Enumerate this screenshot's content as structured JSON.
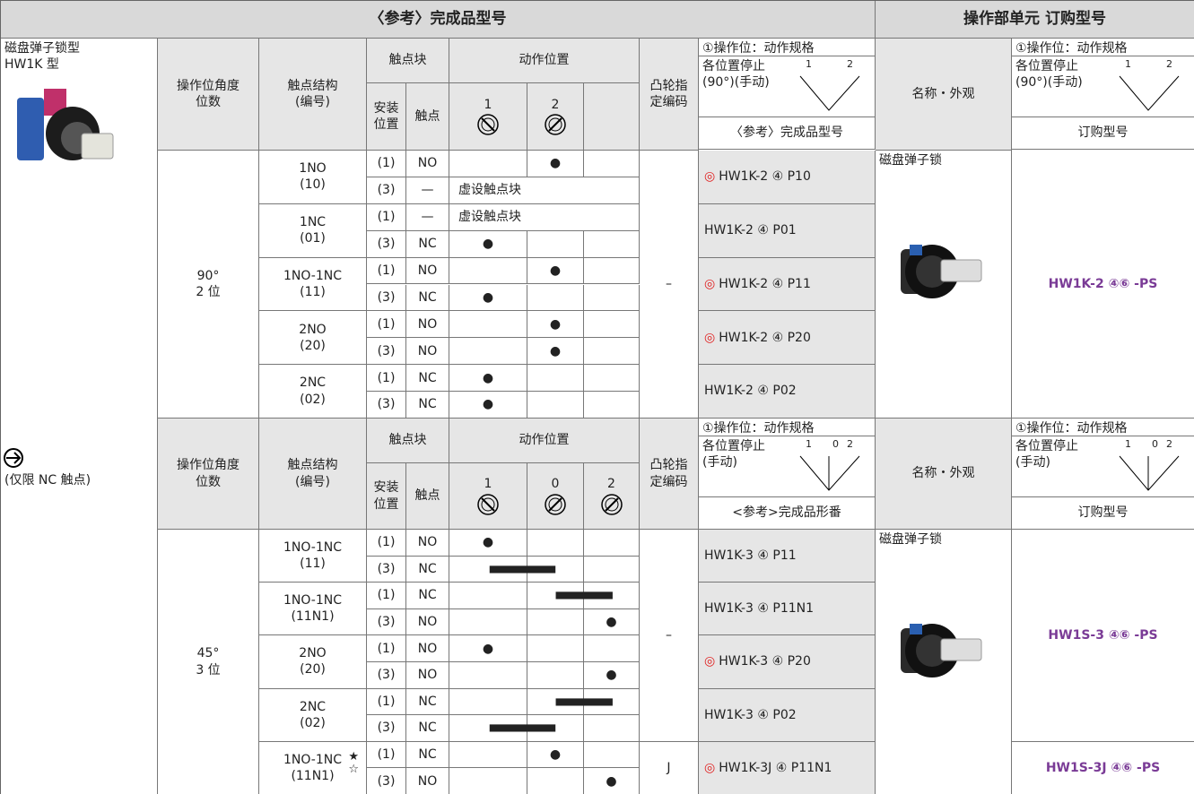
{
  "header": {
    "reference": "〈参考〉完成品型号",
    "order": "操作部单元 订购型号"
  },
  "side": {
    "title": "磁盘弹子锁型",
    "model": "HW1K 型",
    "note": "(仅限 NC 触点)"
  },
  "sections": [
    {
      "header": {
        "angle": "操作位角度\n位数",
        "structure": "触点结构\n(编号)",
        "block": "触点块",
        "action": "动作位置",
        "install": "安装\n位置",
        "contact": "触点",
        "positions": [
          "1",
          "2"
        ],
        "cam": "凸轮指\n定编码",
        "spec": "①操作位：动作规格",
        "stop": "各位置停止\n(90°)(手动)",
        "diagram": [
          "1",
          "2"
        ],
        "ref": "〈参考〉完成品型号",
        "name": "名称・外观",
        "order_spec": "①操作位：动作规格",
        "order_stop": "各位置停止\n(90°)(手动)",
        "order_diagram": [
          "1",
          "2"
        ],
        "order_label": "订购型号"
      },
      "angle": "90°\n2 位",
      "name": "磁盘弹子锁",
      "groups": [
        {
          "cam": "–",
          "order": "HW1K-2 ④⑥ -PS",
          "pairs": [
            {
              "structure": "1NO\n(10)",
              "mark": "◎",
              "model": "HW1K-2 ④ P10",
              "rows": [
                {
                  "pos": "(1)",
                  "contact": "NO",
                  "actions": [
                    null,
                    "●"
                  ]
                },
                {
                  "pos": "(3)",
                  "contact": "—",
                  "dummy": "虚设触点块"
                }
              ]
            },
            {
              "structure": "1NC\n(01)",
              "model": "HW1K-2 ④ P01",
              "rows": [
                {
                  "pos": "(1)",
                  "contact": "—",
                  "dummy": "虚设触点块"
                },
                {
                  "pos": "(3)",
                  "contact": "NC",
                  "actions": [
                    "●",
                    null
                  ]
                }
              ]
            },
            {
              "structure": "1NO-1NC\n(11)",
              "mark": "◎",
              "model": "HW1K-2 ④ P11",
              "rows": [
                {
                  "pos": "(1)",
                  "contact": "NO",
                  "actions": [
                    null,
                    "●"
                  ]
                },
                {
                  "pos": "(3)",
                  "contact": "NC",
                  "actions": [
                    "●",
                    null
                  ]
                }
              ]
            },
            {
              "structure": "2NO\n(20)",
              "mark": "◎",
              "model": "HW1K-2 ④ P20",
              "rows": [
                {
                  "pos": "(1)",
                  "contact": "NO",
                  "actions": [
                    null,
                    "●"
                  ]
                },
                {
                  "pos": "(3)",
                  "contact": "NO",
                  "actions": [
                    null,
                    "●"
                  ]
                }
              ]
            },
            {
              "structure": "2NC\n(02)",
              "model": "HW1K-2 ④ P02",
              "rows": [
                {
                  "pos": "(1)",
                  "contact": "NC",
                  "actions": [
                    "●",
                    null
                  ]
                },
                {
                  "pos": "(3)",
                  "contact": "NC",
                  "actions": [
                    "●",
                    null
                  ]
                }
              ]
            }
          ]
        }
      ]
    },
    {
      "header": {
        "angle": "操作位角度\n位数",
        "structure": "触点结构\n(编号)",
        "block": "触点块",
        "action": "动作位置",
        "install": "安装\n位置",
        "contact": "触点",
        "positions": [
          "1",
          "0",
          "2"
        ],
        "cam": "凸轮指\n定编码",
        "spec": "①操作位：动作规格",
        "stop": "各位置停止\n(手动)",
        "diagram": [
          "1",
          "0",
          "2"
        ],
        "ref": "<参考>完成品形番",
        "name": "名称・外观",
        "order_spec": "①操作位：动作规格",
        "order_stop": "各位置停止\n(手动)",
        "order_diagram": [
          "1",
          "0",
          "2"
        ],
        "order_label": "订购型号"
      },
      "angle": "45°\n3 位",
      "name": "磁盘弹子锁",
      "groups": [
        {
          "cam": "–",
          "order": "HW1S-3 ④⑥ -PS",
          "pairs": [
            {
              "structure": "1NO-1NC\n(11)",
              "model": "HW1K-3 ④ P11",
              "rows": [
                {
                  "pos": "(1)",
                  "contact": "NO",
                  "actions": [
                    "●",
                    null,
                    null
                  ]
                },
                {
                  "pos": "(3)",
                  "contact": "NC",
                  "actions": [
                    "▬",
                    null,
                    null
                  ]
                }
              ]
            },
            {
              "structure": "1NO-1NC\n(11N1)",
              "model": "HW1K-3 ④ P11N1",
              "rows": [
                {
                  "pos": "(1)",
                  "contact": "NC",
                  "actions": [
                    null,
                    "▬",
                    null
                  ]
                },
                {
                  "pos": "(3)",
                  "contact": "NO",
                  "actions": [
                    null,
                    null,
                    "●"
                  ]
                }
              ]
            },
            {
              "structure": "2NO\n(20)",
              "mark": "◎",
              "model": "HW1K-3 ④ P20",
              "rows": [
                {
                  "pos": "(1)",
                  "contact": "NO",
                  "actions": [
                    "●",
                    null,
                    null
                  ]
                },
                {
                  "pos": "(3)",
                  "contact": "NO",
                  "actions": [
                    null,
                    null,
                    "●"
                  ]
                }
              ]
            },
            {
              "structure": "2NC\n(02)",
              "model": "HW1K-3 ④ P02",
              "rows": [
                {
                  "pos": "(1)",
                  "contact": "NC",
                  "actions": [
                    null,
                    "▬",
                    null
                  ]
                },
                {
                  "pos": "(3)",
                  "contact": "NC",
                  "actions": [
                    "▬",
                    null,
                    null
                  ]
                }
              ]
            }
          ]
        },
        {
          "cam": "J",
          "order": "HW1S-3J ④⑥ -PS",
          "pairs": [
            {
              "structure": "1NO-1NC\n(11N1)",
              "star": "★\n☆",
              "mark": "◎",
              "model": "HW1K-3J ④ P11N1",
              "rows": [
                {
                  "pos": "(1)",
                  "contact": "NC",
                  "actions": [
                    null,
                    "●",
                    null
                  ]
                },
                {
                  "pos": "(3)",
                  "contact": "NO",
                  "actions": [
                    null,
                    null,
                    "●"
                  ]
                }
              ]
            }
          ]
        }
      ]
    }
  ]
}
